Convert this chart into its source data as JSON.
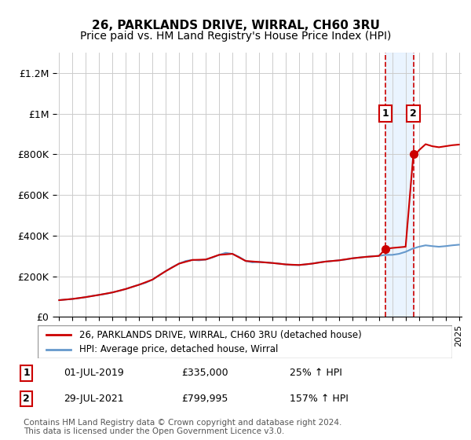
{
  "title": "26, PARKLANDS DRIVE, WIRRAL, CH60 3RU",
  "subtitle": "Price paid vs. HM Land Registry's House Price Index (HPI)",
  "ylim": [
    0,
    1300000
  ],
  "yticks": [
    0,
    200000,
    400000,
    600000,
    800000,
    1000000,
    1200000
  ],
  "ytick_labels": [
    "£0",
    "£200K",
    "£400K",
    "£600K",
    "£800K",
    "£1M",
    "£1.2M"
  ],
  "hpi_color": "#6699cc",
  "price_color": "#cc0000",
  "marker_color": "#cc0000",
  "shade_color": "#ddeeff",
  "dashed_color": "#cc0000",
  "annotation_box_color": "#cc0000",
  "hatch_color": "#cccccc",
  "legend_label_1": "26, PARKLANDS DRIVE, WIRRAL, CH60 3RU (detached house)",
  "legend_label_2": "HPI: Average price, detached house, Wirral",
  "transaction_1_date": "01-JUL-2019",
  "transaction_1_price": "£335,000",
  "transaction_1_pct": "25% ↑ HPI",
  "transaction_2_date": "29-JUL-2021",
  "transaction_2_price": "£799,995",
  "transaction_2_pct": "157% ↑ HPI",
  "footer": "Contains HM Land Registry data © Crown copyright and database right 2024.\nThis data is licensed under the Open Government Licence v3.0.",
  "title_fontsize": 11,
  "subtitle_fontsize": 10
}
